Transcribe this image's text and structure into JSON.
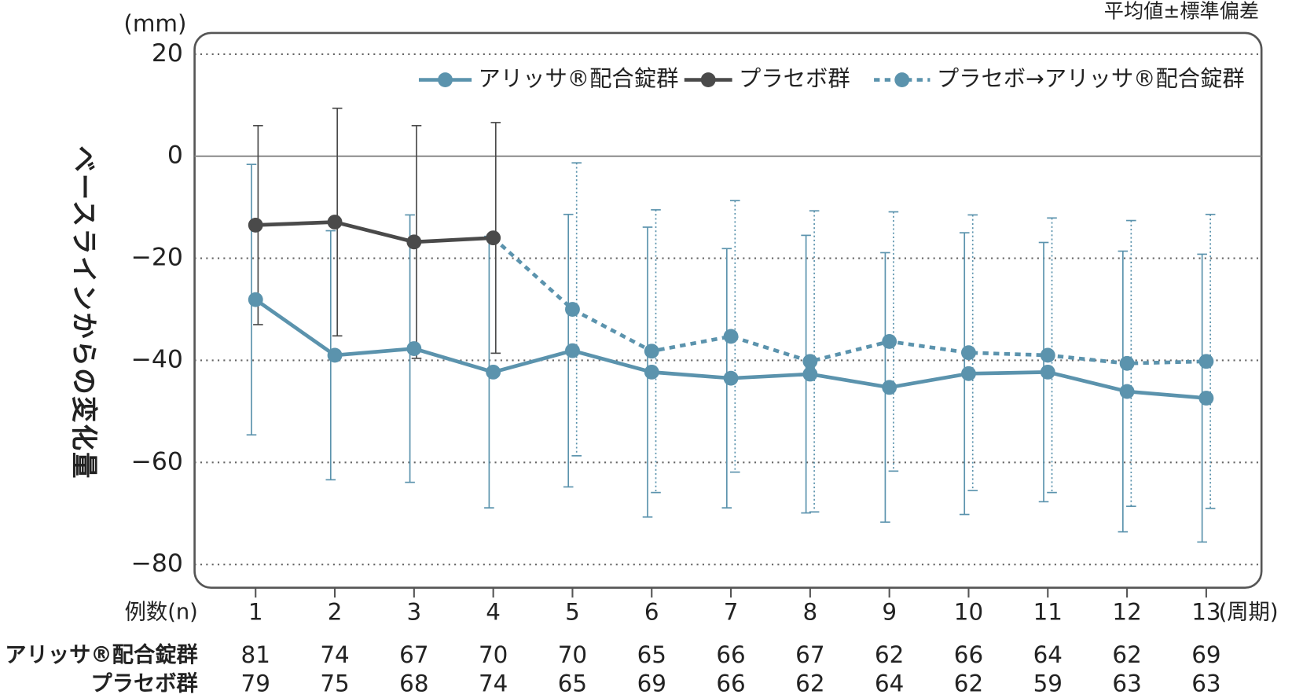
{
  "chart_data": {
    "type": "line",
    "note": "平均値±標準偏差",
    "y_unit": "(mm)",
    "ylabel": "ベースラインからの変化量",
    "x_label": "(周期)",
    "categories": [
      "1",
      "2",
      "3",
      "4",
      "5",
      "6",
      "7",
      "8",
      "9",
      "10",
      "11",
      "12",
      "13"
    ],
    "ylim": [
      -85,
      22
    ],
    "yticks": [
      {
        "value": -80,
        "label": "−80"
      },
      {
        "value": -60,
        "label": "−60"
      },
      {
        "value": -40,
        "label": "−40"
      },
      {
        "value": -20,
        "label": "−20"
      },
      0,
      20
    ],
    "grid": true,
    "legend": "top-right",
    "series": [
      {
        "name": "アリッサ®配合錠群",
        "color": "#5b93ad",
        "dashed": false,
        "values": [
          -28.1,
          -39.0,
          -37.7,
          -42.3,
          -38.1,
          -42.3,
          -43.5,
          -42.7,
          -45.3,
          -42.6,
          -42.3,
          -46.1,
          -47.4
        ],
        "errors": [
          26.5,
          24.4,
          26.2,
          26.6,
          26.7,
          28.4,
          25.4,
          27.2,
          26.4,
          27.6,
          25.4,
          27.5,
          28.2
        ]
      },
      {
        "name": "プラセボ群",
        "color": "#4a4a4a",
        "dashed": false,
        "values": [
          -13.5,
          -12.9,
          -16.8,
          -16.0,
          null,
          null,
          null,
          null,
          null,
          null,
          null,
          null,
          null
        ],
        "errors": [
          19.5,
          22.3,
          22.8,
          22.6,
          null,
          null,
          null,
          null,
          null,
          null,
          null,
          null,
          null
        ]
      },
      {
        "name": "プラセボ→アリッサ®配合錠群",
        "color": "#5b93ad",
        "dashed": true,
        "values": [
          null,
          null,
          null,
          -16.0,
          -30.0,
          -38.2,
          -35.3,
          -40.2,
          -36.3,
          -38.5,
          -39.0,
          -40.6,
          -40.2
        ],
        "errors": [
          null,
          null,
          null,
          null,
          28.7,
          27.7,
          26.6,
          29.5,
          25.4,
          27.0,
          26.9,
          28.0,
          28.8
        ]
      }
    ],
    "sample_sizes": {
      "label": "例数(n)",
      "rows": [
        {
          "name": "アリッサ®配合錠群",
          "values": [
            81,
            74,
            67,
            70,
            70,
            65,
            66,
            67,
            62,
            66,
            64,
            62,
            69
          ]
        },
        {
          "name": "プラセボ群",
          "values": [
            79,
            75,
            68,
            74,
            65,
            69,
            66,
            62,
            64,
            62,
            59,
            63,
            63
          ]
        }
      ]
    }
  }
}
